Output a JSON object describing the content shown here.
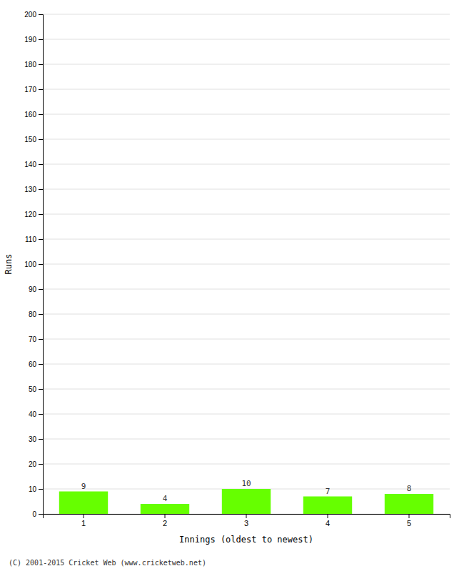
{
  "chart_data": {
    "type": "bar",
    "categories": [
      "1",
      "2",
      "3",
      "4",
      "5"
    ],
    "values": [
      9,
      4,
      10,
      7,
      8
    ],
    "color": "#66ff00",
    "xlabel": "Innings (oldest to newest)",
    "ylabel": "Runs",
    "ylim": [
      0,
      200
    ],
    "yticks": [
      0,
      10,
      20,
      30,
      40,
      50,
      60,
      70,
      80,
      90,
      100,
      110,
      120,
      130,
      140,
      150,
      160,
      170,
      180,
      190,
      200
    ],
    "grid": true,
    "data_labels": true,
    "annotations": [
      "(C) 2001-2015 Cricket Web (www.cricketweb.net)"
    ]
  }
}
